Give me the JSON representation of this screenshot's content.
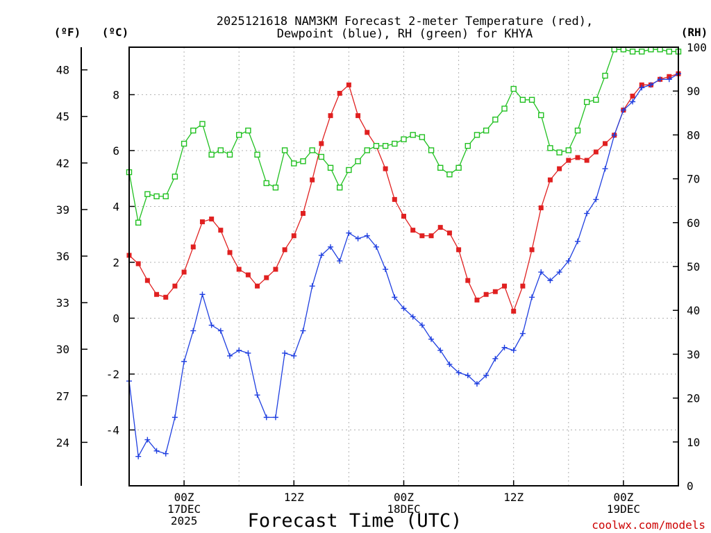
{
  "chart_data": {
    "type": "line",
    "title_line1": "2025121618 NAM3KM Forecast 2-meter Temperature (red),",
    "title_line2": "Dewpoint (blue), RH (green) for KHYA",
    "xlabel": "Forecast Time (UTC)",
    "credit": "coolwx.com/models",
    "unit_f": "(ºF)",
    "unit_c": "(ºC)",
    "unit_rh": "(RH)",
    "x_range": [
      -6,
      54
    ],
    "y_c_range": [
      -6.0,
      9.7
    ],
    "y_rh_range": [
      0,
      100
    ],
    "yticks_c": [
      "-4",
      "-2",
      "0",
      "2",
      "4",
      "6",
      "8"
    ],
    "yticks_f": [
      "24",
      "27",
      "30",
      "33",
      "36",
      "39",
      "42",
      "45",
      "48"
    ],
    "yticks_rh": [
      "0",
      "10",
      "20",
      "30",
      "40",
      "50",
      "60",
      "70",
      "80",
      "90",
      "100"
    ],
    "xticks": [
      {
        "x": 0,
        "lines": [
          "00Z",
          "17DEC",
          "2025"
        ]
      },
      {
        "x": 12,
        "lines": [
          "12Z"
        ]
      },
      {
        "x": 24,
        "lines": [
          "00Z",
          "18DEC"
        ]
      },
      {
        "x": 36,
        "lines": [
          "12Z"
        ]
      },
      {
        "x": 48,
        "lines": [
          "00Z",
          "19DEC"
        ]
      }
    ],
    "x": [
      -6,
      -5,
      -4,
      -3,
      -2,
      -1,
      0,
      1,
      2,
      3,
      4,
      5,
      6,
      7,
      8,
      9,
      10,
      11,
      12,
      13,
      14,
      15,
      16,
      17,
      18,
      19,
      20,
      21,
      22,
      23,
      24,
      25,
      26,
      27,
      28,
      29,
      30,
      31,
      32,
      33,
      34,
      35,
      36,
      37,
      38,
      39,
      40,
      41,
      42,
      43,
      44,
      45,
      46,
      47,
      48,
      49,
      50,
      51,
      52,
      53,
      54
    ],
    "series": [
      {
        "name": "Temperature",
        "color": "#e02020",
        "marker": "square-filled",
        "units": "C",
        "values": [
          2.25,
          1.95,
          1.35,
          0.85,
          0.75,
          1.15,
          1.65,
          2.55,
          3.45,
          3.55,
          3.15,
          2.35,
          1.75,
          1.55,
          1.15,
          1.45,
          1.75,
          2.45,
          2.95,
          3.75,
          4.95,
          6.25,
          7.25,
          8.05,
          8.35,
          7.25,
          6.65,
          6.15,
          5.35,
          4.25,
          3.65,
          3.15,
          2.95,
          2.95,
          3.25,
          3.05,
          2.45,
          1.35,
          0.65,
          0.85,
          0.95,
          1.15,
          0.25,
          1.15,
          2.45,
          3.95,
          4.95,
          5.35,
          5.65,
          5.75,
          5.65,
          5.95,
          6.25,
          6.55,
          7.45,
          7.95,
          8.35,
          8.35,
          8.55,
          8.65,
          8.75
        ]
      },
      {
        "name": "Dewpoint",
        "color": "#1f3fe0",
        "marker": "plus",
        "units": "C",
        "values": [
          -2.25,
          -4.95,
          -4.35,
          -4.75,
          -4.85,
          -3.55,
          -1.55,
          -0.45,
          0.85,
          -0.25,
          -0.45,
          -1.35,
          -1.15,
          -1.25,
          -2.75,
          -3.55,
          -3.55,
          -1.25,
          -1.35,
          -0.45,
          1.15,
          2.25,
          2.55,
          2.05,
          3.05,
          2.85,
          2.95,
          2.55,
          1.75,
          0.75,
          0.35,
          0.05,
          -0.25,
          -0.75,
          -1.15,
          -1.65,
          -1.95,
          -2.05,
          -2.35,
          -2.05,
          -1.45,
          -1.05,
          -1.15,
          -0.55,
          0.75,
          1.65,
          1.35,
          1.65,
          2.05,
          2.75,
          3.75,
          4.25,
          5.35,
          6.55,
          7.45,
          7.75,
          8.25,
          8.35,
          8.55,
          8.55,
          8.75
        ]
      },
      {
        "name": "RH",
        "color": "#20c020",
        "marker": "square-open",
        "units": "%",
        "values": [
          71.5,
          60,
          66.5,
          66,
          66,
          70.5,
          78,
          81,
          82.5,
          75.5,
          76.5,
          75.5,
          80,
          81,
          75.5,
          69,
          68,
          76.5,
          73.5,
          74,
          76.5,
          75,
          72.5,
          68,
          72,
          74,
          76.5,
          77.5,
          77.5,
          78,
          79,
          80,
          79.5,
          76.5,
          72.5,
          71,
          72.5,
          77.5,
          80,
          81,
          83.5,
          86,
          90.5,
          88,
          88,
          84.5,
          77,
          76,
          76.5,
          81,
          87.5,
          88,
          93.5,
          99.5,
          99.5,
          99,
          99,
          99.5,
          99.5,
          99,
          99
        ]
      }
    ]
  }
}
